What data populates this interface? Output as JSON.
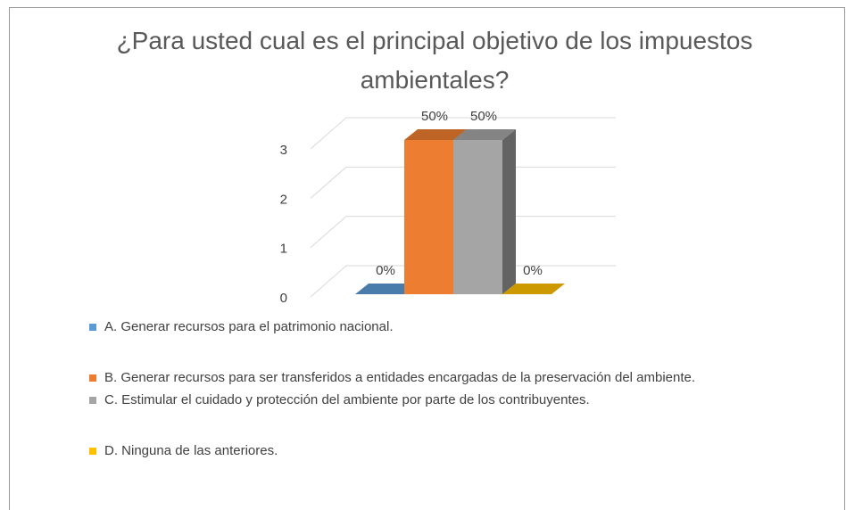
{
  "chart_data": {
    "type": "bar3d",
    "title": "¿Para usted cual es el principal objetivo de los impuestos ambientales?",
    "ylim": [
      0,
      3
    ],
    "yticks": [
      0,
      1,
      2,
      3
    ],
    "grid": true,
    "series": [
      {
        "name": "A. Generar recursos para el patrimonio nacional.",
        "color": "#5b9bd5",
        "values": [
          0
        ],
        "percent": [
          0
        ],
        "value_labels": [
          "0%"
        ]
      },
      {
        "name": "B. Generar recursos para ser transferidos a entidades encargadas de la preservación del ambiente.",
        "color": "#ed7d31",
        "values": [
          3
        ],
        "percent": [
          50
        ],
        "value_labels": [
          "50%"
        ]
      },
      {
        "name": "C. Estimular el cuidado y protección del ambiente por parte de los contribuyentes.",
        "color": "#a5a5a5",
        "values": [
          3
        ],
        "percent": [
          50
        ],
        "value_labels": [
          "50%"
        ]
      },
      {
        "name": "D. Ninguna de las anteriores.",
        "color": "#ffc000",
        "values": [
          0
        ],
        "percent": [
          0
        ],
        "value_labels": [
          "0%"
        ]
      }
    ]
  }
}
